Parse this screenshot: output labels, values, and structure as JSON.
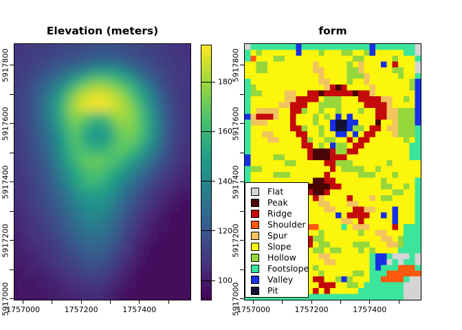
{
  "chart_data": [
    {
      "type": "heatmap",
      "title": "Elevation (meters)",
      "x_range": [
        1756968,
        1757578
      ],
      "y_range": [
        5916995,
        5917875
      ],
      "value_range": [
        92,
        195
      ],
      "x_ticks": [
        {
          "value": 1757000,
          "label": "1757000"
        },
        {
          "value": 1757100,
          "label": ""
        },
        {
          "value": 1757200,
          "label": "1757200"
        },
        {
          "value": 1757300,
          "label": ""
        },
        {
          "value": 1757400,
          "label": "1757400"
        },
        {
          "value": 1757500,
          "label": ""
        }
      ],
      "y_ticks": [
        {
          "value": 5917800,
          "label": "5917800"
        },
        {
          "value": 5917700,
          "label": ""
        },
        {
          "value": 5917600,
          "label": "5917600"
        },
        {
          "value": 5917500,
          "label": ""
        },
        {
          "value": 5917400,
          "label": "5917400"
        },
        {
          "value": 5917300,
          "label": ""
        },
        {
          "value": 5917200,
          "label": "5917200"
        },
        {
          "value": 5917100,
          "label": ""
        },
        {
          "value": 5917000,
          "label": "5917000"
        }
      ],
      "colorbar": {
        "ticks": [
          {
            "value": 100,
            "label": "100"
          },
          {
            "value": 120,
            "label": "120"
          },
          {
            "value": 140,
            "label": "140"
          },
          {
            "value": 160,
            "label": "160"
          },
          {
            "value": 180,
            "label": "180"
          }
        ],
        "stops": [
          {
            "t": 0.0,
            "color": "#440154"
          },
          {
            "t": 0.14,
            "color": "#46327e"
          },
          {
            "t": 0.29,
            "color": "#365c8d"
          },
          {
            "t": 0.43,
            "color": "#277f8e"
          },
          {
            "t": 0.57,
            "color": "#1fa187"
          },
          {
            "t": 0.71,
            "color": "#4ac16d"
          },
          {
            "t": 0.86,
            "color": "#a0da39"
          },
          {
            "t": 1.0,
            "color": "#fde725"
          }
        ]
      },
      "grid": {
        "ncols": 16,
        "nrows": 23,
        "values": [
          [
            108,
            110,
            110,
            112,
            114,
            115,
            116,
            118,
            118,
            117,
            116,
            114,
            112,
            110,
            108,
            106
          ],
          [
            109,
            111,
            113,
            116,
            118,
            120,
            122,
            125,
            126,
            124,
            120,
            117,
            114,
            111,
            109,
            107
          ],
          [
            110,
            113,
            117,
            122,
            127,
            133,
            140,
            148,
            150,
            145,
            135,
            125,
            118,
            113,
            110,
            107
          ],
          [
            111,
            115,
            122,
            130,
            140,
            155,
            168,
            175,
            172,
            165,
            155,
            140,
            126,
            116,
            111,
            108
          ],
          [
            112,
            117,
            126,
            138,
            155,
            175,
            186,
            190,
            188,
            180,
            168,
            152,
            135,
            120,
            112,
            108
          ],
          [
            112,
            118,
            128,
            142,
            162,
            183,
            192,
            195,
            192,
            186,
            176,
            160,
            140,
            123,
            113,
            108
          ],
          [
            112,
            118,
            128,
            142,
            160,
            178,
            172,
            162,
            170,
            182,
            178,
            165,
            145,
            125,
            114,
            108
          ],
          [
            111,
            117,
            126,
            138,
            155,
            170,
            155,
            148,
            152,
            172,
            176,
            166,
            147,
            126,
            114,
            108
          ],
          [
            110,
            116,
            124,
            135,
            150,
            168,
            152,
            146,
            150,
            168,
            172,
            163,
            145,
            125,
            113,
            107
          ],
          [
            110,
            115,
            122,
            132,
            148,
            165,
            162,
            155,
            160,
            170,
            165,
            152,
            138,
            122,
            112,
            106
          ],
          [
            109,
            114,
            120,
            130,
            145,
            160,
            170,
            172,
            168,
            162,
            152,
            140,
            128,
            117,
            110,
            105
          ],
          [
            108,
            113,
            118,
            127,
            140,
            152,
            163,
            166,
            160,
            150,
            140,
            130,
            120,
            112,
            107,
            103
          ],
          [
            107,
            112,
            116,
            124,
            135,
            148,
            160,
            160,
            152,
            142,
            132,
            122,
            114,
            108,
            104,
            101
          ],
          [
            106,
            111,
            115,
            121,
            130,
            140,
            148,
            150,
            145,
            135,
            125,
            116,
            109,
            104,
            101,
            99
          ],
          [
            105,
            110,
            114,
            119,
            127,
            136,
            143,
            145,
            140,
            130,
            120,
            112,
            106,
            101,
            98,
            96
          ],
          [
            104,
            108,
            112,
            116,
            123,
            131,
            138,
            140,
            135,
            125,
            116,
            108,
            103,
            99,
            96,
            95
          ],
          [
            103,
            107,
            110,
            114,
            120,
            127,
            133,
            135,
            130,
            121,
            112,
            105,
            100,
            97,
            95,
            94
          ],
          [
            102,
            105,
            108,
            112,
            117,
            123,
            128,
            130,
            126,
            117,
            109,
            103,
            98,
            95,
            94,
            94
          ],
          [
            101,
            104,
            106,
            109,
            113,
            118,
            123,
            125,
            121,
            113,
            106,
            100,
            96,
            94,
            94,
            94
          ],
          [
            100,
            102,
            104,
            107,
            110,
            114,
            118,
            120,
            116,
            109,
            103,
            98,
            95,
            94,
            94,
            94
          ],
          [
            99,
            101,
            102,
            104,
            107,
            110,
            113,
            115,
            111,
            105,
            100,
            96,
            94,
            94,
            94,
            94
          ],
          [
            98,
            99,
            100,
            102,
            104,
            106,
            108,
            109,
            106,
            101,
            97,
            94,
            94,
            94,
            94,
            94
          ],
          [
            97,
            98,
            99,
            100,
            101,
            103,
            104,
            105,
            102,
            98,
            95,
            94,
            94,
            94,
            94,
            94
          ]
        ]
      }
    },
    {
      "type": "heatmap",
      "categorical": true,
      "title": "form",
      "x_range": [
        1756968,
        1757578
      ],
      "y_range": [
        5916995,
        5917875
      ],
      "x_ticks": [
        {
          "value": 1757000,
          "label": "1757000"
        },
        {
          "value": 1757100,
          "label": ""
        },
        {
          "value": 1757200,
          "label": "1757200"
        },
        {
          "value": 1757300,
          "label": ""
        },
        {
          "value": 1757400,
          "label": "1757400"
        },
        {
          "value": 1757500,
          "label": ""
        }
      ],
      "y_ticks": [
        {
          "value": 5917800,
          "label": "5917800"
        },
        {
          "value": 5917700,
          "label": ""
        },
        {
          "value": 5917600,
          "label": "5917600"
        },
        {
          "value": 5917500,
          "label": ""
        },
        {
          "value": 5917400,
          "label": "5917400"
        },
        {
          "value": 5917300,
          "label": ""
        },
        {
          "value": 5917200,
          "label": "5917200"
        },
        {
          "value": 5917100,
          "label": ""
        },
        {
          "value": 5917000,
          "label": "5917000"
        }
      ],
      "classes": [
        {
          "code": "0",
          "name": "Flat",
          "color": "#D4D4D4"
        },
        {
          "code": "1",
          "name": "Peak",
          "color": "#4A0505"
        },
        {
          "code": "2",
          "name": "Ridge",
          "color": "#C40A0A"
        },
        {
          "code": "3",
          "name": "Shoulder",
          "color": "#FF5A0F"
        },
        {
          "code": "4",
          "name": "Spur",
          "color": "#F2C45E"
        },
        {
          "code": "5",
          "name": "Slope",
          "color": "#FCF50C"
        },
        {
          "code": "6",
          "name": "Hollow",
          "color": "#96D73C"
        },
        {
          "code": "7",
          "name": "Footslope",
          "color": "#3BE59B"
        },
        {
          "code": "8",
          "name": "Valley",
          "color": "#1730E5"
        },
        {
          "code": "9",
          "name": "Pit",
          "color": "#131334"
        }
      ],
      "grid_rows": [
        "0777777778777777777777877777770",
        "7565555558555655566556855555770",
        "7355566555555555555665555565557",
        "5566555555554555556545558525550",
        "5566555555554455556645555566550",
        "5555555555555455556664555556557",
        "7555555555555445556554555555568",
        "7655555555555542125555455555568",
        "7665555445522122222122455555558",
        "7555555442222566655522224455658",
        "7555554422255666655552222455558",
        "7544445522655655655565522446668",
        "8422245525556565858555522446668",
        "7444555525556558998855515546668",
        "7555555522655658998665225446667",
        "7554455552255655885852255546667",
        "7555445555265566552522555555657",
        "7555555555225658665225555555577",
        "7555555555521112662255555555577",
        "8555566555521112225555555555577",
        "8555555665555522666555555655555",
        "7665555555555552566665565555555",
        "7555566655555525555566655565555",
        "7555555555551122555555556555557",
        "7556555555511112255555556655657",
        "7555565555521125555555555566557",
        "7555555555552455552555456655557",
        "7555555555555445554455555555557",
        "7555555555555544555224455585557",
        "7555555555555555852222558585557",
        "7555555555555555544525555585557",
        "7555555555533555575444555525777",
        "7555555555555655555565544555777",
        "7555555555526655555555554456777",
        "7555555555525665555666555446777",
        "7555555555556656655565655557777",
        "7555555555555445555555788700070",
        "7555555555555544555555788070770",
        "7555555555556555555555787773337",
        "7555555555555655555665777333333",
        "7555555555552255686555773333700",
        "7555555555555222556657777777000",
        "7555555555552525555577777777000",
        "7777777777777777777777777777000"
      ]
    }
  ]
}
